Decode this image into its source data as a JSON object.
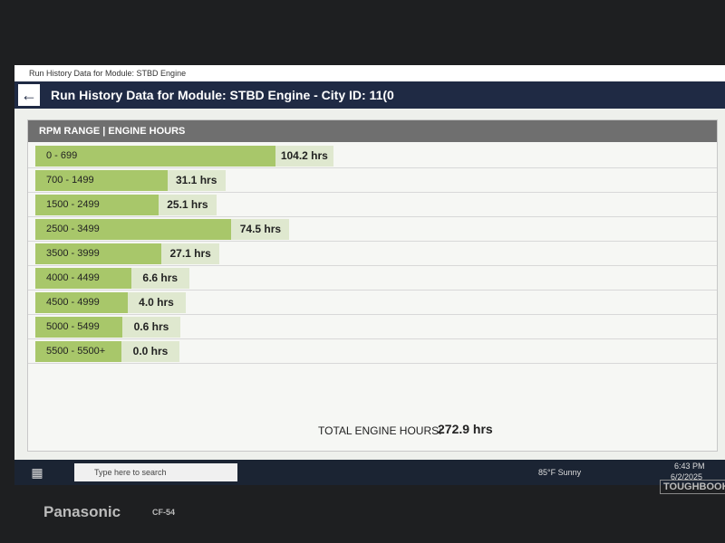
{
  "window_title": "Run History Data for Module: STBD Engine",
  "header": {
    "title": "Run History Data for Module: STBD Engine - City ID: 11(0"
  },
  "table": {
    "heading": "RPM RANGE | ENGINE HOURS",
    "rows": [
      {
        "range": "0 - 699",
        "hours": 104.2,
        "label": "104.2 hrs"
      },
      {
        "range": "700 - 1499",
        "hours": 31.1,
        "label": "31.1 hrs"
      },
      {
        "range": "1500 - 2499",
        "hours": 25.1,
        "label": "25.1 hrs"
      },
      {
        "range": "2500 - 3499",
        "hours": 74.5,
        "label": "74.5 hrs"
      },
      {
        "range": "3500 - 3999",
        "hours": 27.1,
        "label": "27.1 hrs"
      },
      {
        "range": "4000 - 4499",
        "hours": 6.6,
        "label": "6.6 hrs"
      },
      {
        "range": "4500 - 4999",
        "hours": 4.0,
        "label": "4.0 hrs"
      },
      {
        "range": "5000 - 5499",
        "hours": 0.6,
        "label": "0.6 hrs"
      },
      {
        "range": "5500 - 5500+",
        "hours": 0.0,
        "label": "0.0 hrs"
      }
    ],
    "total_label": "TOTAL ENGINE HOURS:",
    "total": 272.9,
    "total_value_label": "272.9 hrs"
  },
  "taskbar": {
    "search": "Type here to search",
    "weather": "85°F  Sunny",
    "time": "6:43 PM",
    "date": "6/2/2025"
  },
  "bezel": {
    "brand": "Panasonic",
    "model": "CF-54",
    "series": "TOUGHBOOK"
  }
}
